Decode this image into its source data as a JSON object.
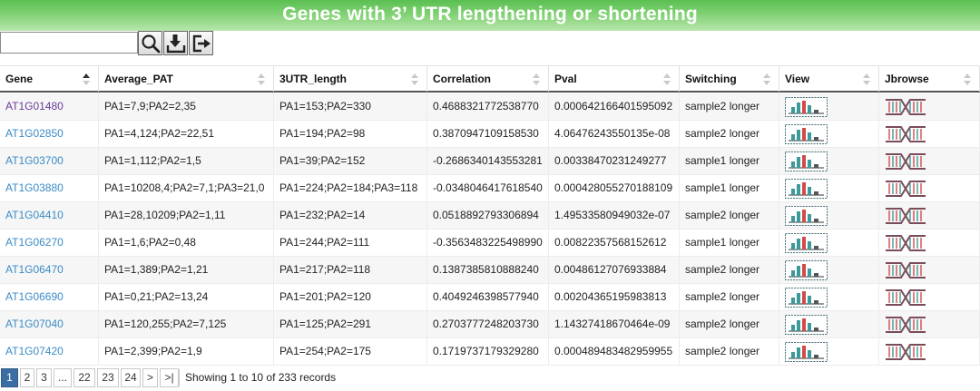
{
  "header": {
    "title": "Genes with 3’ UTR lengthening or shortening"
  },
  "toolbar": {
    "search_value": "",
    "search_icon": "search-icon",
    "download_icon": "download-icon",
    "export_icon": "export-icon"
  },
  "columns": [
    "Gene",
    "Average_PAT",
    "3UTR_length",
    "Correlation",
    "Pval",
    "Switching",
    "View",
    "Jbrowse"
  ],
  "rows": [
    {
      "gene": "AT1G01480",
      "avg_pat": "PA1=7,9;PA2=2,35",
      "utr_len": "PA1=153;PA2=330",
      "corr": "0.4688321772538770",
      "pval": "0.000642166401595092",
      "switching": "sample2 longer"
    },
    {
      "gene": "AT1G02850",
      "avg_pat": "PA1=4,124;PA2=22,51",
      "utr_len": "PA1=194;PA2=98",
      "corr": "0.3870947109158530",
      "pval": "4.06476243550135e-08",
      "switching": "sample2 longer"
    },
    {
      "gene": "AT1G03700",
      "avg_pat": "PA1=1,112;PA2=1,5",
      "utr_len": "PA1=39;PA2=152",
      "corr": "-0.2686340143553281",
      "pval": "0.00338470231249277",
      "switching": "sample1 longer"
    },
    {
      "gene": "AT1G03880",
      "avg_pat": "PA1=10208,4;PA2=7,1;PA3=21,0",
      "utr_len": "PA1=224;PA2=184;PA3=118",
      "corr": "-0.0348046417618540",
      "pval": "0.000428055270188109",
      "switching": "sample1 longer"
    },
    {
      "gene": "AT1G04410",
      "avg_pat": "PA1=28,10209;PA2=1,11",
      "utr_len": "PA1=232;PA2=14",
      "corr": "0.0518892793306894",
      "pval": "1.49533580949032e-07",
      "switching": "sample2 longer"
    },
    {
      "gene": "AT1G06270",
      "avg_pat": "PA1=1,6;PA2=0,48",
      "utr_len": "PA1=244;PA2=111",
      "corr": "-0.3563483225498990",
      "pval": "0.00822357568152612",
      "switching": "sample1 longer"
    },
    {
      "gene": "AT1G06470",
      "avg_pat": "PA1=1,389;PA2=1,21",
      "utr_len": "PA1=217;PA2=118",
      "corr": "0.1387385810888240",
      "pval": "0.00486127076933884",
      "switching": "sample2 longer"
    },
    {
      "gene": "AT1G06690",
      "avg_pat": "PA1=0,21;PA2=13,24",
      "utr_len": "PA1=201;PA2=120",
      "corr": "0.4049246398577940",
      "pval": "0.00204365195983813",
      "switching": "sample2 longer"
    },
    {
      "gene": "AT1G07040",
      "avg_pat": "PA1=120,255;PA2=7,125",
      "utr_len": "PA1=125;PA2=291",
      "corr": "0.2703777248203730",
      "pval": "1.14327418670464e-09",
      "switching": "sample2 longer"
    },
    {
      "gene": "AT1G07420",
      "avg_pat": "PA1=2,399;PA2=1,9",
      "utr_len": "PA1=254;PA2=175",
      "corr": "0.1719737179329280",
      "pval": "0.000489483482959955",
      "switching": "sample2 longer"
    }
  ],
  "pager": {
    "pages": [
      "1",
      "2",
      "3",
      "...",
      "22",
      "23",
      "24",
      ">",
      ">|"
    ],
    "current": "1",
    "info": "Showing 1 to 10 of 233 records"
  },
  "colors": {
    "link": "#3b8bc6",
    "visited_link": "#6a3d9a",
    "header_green": "#6cc760",
    "pager_active": "#3b6ea5"
  }
}
